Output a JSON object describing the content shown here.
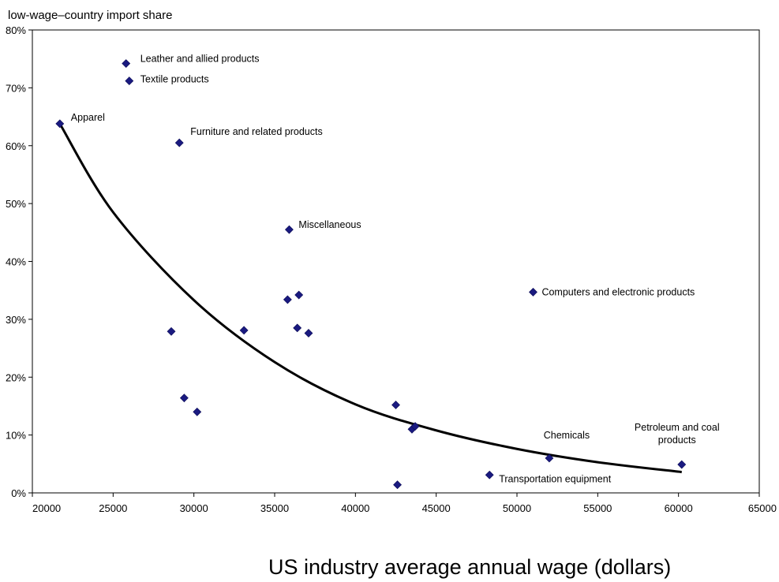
{
  "chart_data": {
    "type": "scatter",
    "ylabel": "low-wage–country import share",
    "xlabel": "US industry average annual wage  (dollars)",
    "xlim": [
      20000,
      65000
    ],
    "ylim": [
      0,
      80
    ],
    "x_ticks": [
      "20000",
      "25000",
      "30000",
      "35000",
      "40000",
      "45000",
      "50000",
      "55000",
      "60000",
      "65000"
    ],
    "y_ticks": [
      "0%",
      "10%",
      "20%",
      "30%",
      "40%",
      "50%",
      "60%",
      "70%",
      "80%"
    ],
    "points": [
      {
        "x": 21700,
        "y": 63.8,
        "label": "Apparel"
      },
      {
        "x": 25800,
        "y": 74.2,
        "label": "Leather and allied products"
      },
      {
        "x": 26000,
        "y": 71.2,
        "label": "Textile products"
      },
      {
        "x": 29100,
        "y": 60.5,
        "label": "Furniture and related products"
      },
      {
        "x": 35900,
        "y": 45.5,
        "label": "Miscellaneous"
      },
      {
        "x": 51000,
        "y": 34.7,
        "label": "Computers and electronic products"
      },
      {
        "x": 52000,
        "y": 6.0,
        "label": "Chemicals"
      },
      {
        "x": 60200,
        "y": 4.9,
        "label": "Petroleum and coal products"
      },
      {
        "x": 48300,
        "y": 3.1,
        "label": "Transportation equipment"
      },
      {
        "x": 28600,
        "y": 27.9,
        "label": ""
      },
      {
        "x": 29400,
        "y": 16.4,
        "label": ""
      },
      {
        "x": 30200,
        "y": 14.0,
        "label": ""
      },
      {
        "x": 33100,
        "y": 28.1,
        "label": ""
      },
      {
        "x": 35800,
        "y": 33.4,
        "label": ""
      },
      {
        "x": 36500,
        "y": 34.2,
        "label": ""
      },
      {
        "x": 36400,
        "y": 28.5,
        "label": ""
      },
      {
        "x": 37100,
        "y": 27.6,
        "label": ""
      },
      {
        "x": 42500,
        "y": 15.2,
        "label": ""
      },
      {
        "x": 43500,
        "y": 11.0,
        "label": ""
      },
      {
        "x": 43700,
        "y": 11.5,
        "label": ""
      },
      {
        "x": 42600,
        "y": 1.4,
        "label": ""
      }
    ],
    "trendline": {
      "type": "exponential",
      "x_range": [
        21700,
        60200
      ],
      "points": [
        [
          21700,
          63.8
        ],
        [
          25000,
          48.5
        ],
        [
          30000,
          33.3
        ],
        [
          35000,
          22.6
        ],
        [
          40000,
          15.3
        ],
        [
          45000,
          10.8
        ],
        [
          50000,
          7.6
        ],
        [
          55000,
          5.3
        ],
        [
          60200,
          3.6
        ]
      ]
    },
    "grid": false,
    "legend": "none"
  }
}
